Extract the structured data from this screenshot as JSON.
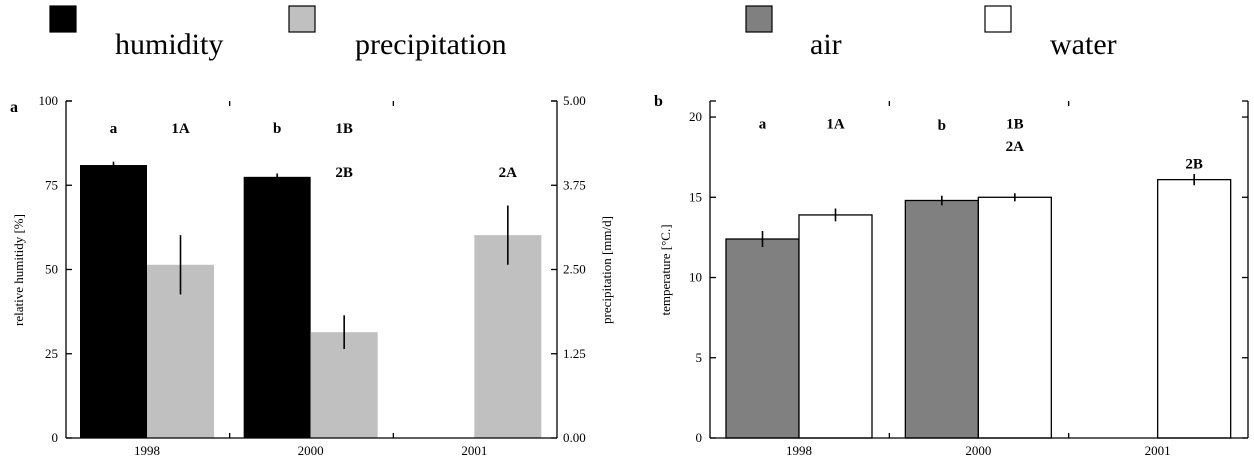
{
  "legend_left": [
    {
      "label": "humidity",
      "color": "#000000"
    },
    {
      "label": "precipitation",
      "color": "#c0c0c0"
    }
  ],
  "legend_right": [
    {
      "label": "air",
      "color": "#808080"
    },
    {
      "label": "water",
      "color": "#ffffff"
    }
  ],
  "chart_data": [
    {
      "type": "bar",
      "panel": "a",
      "categories": [
        "1998",
        "2000",
        "2001"
      ],
      "series": [
        {
          "name": "humidity",
          "axis": "left",
          "color": "#000000",
          "values": [
            81,
            77.5,
            null
          ],
          "errors": [
            1,
            1,
            null
          ]
        },
        {
          "name": "precipitation",
          "axis": "right",
          "color": "#c0c0c0",
          "values": [
            2.57,
            1.57,
            3.01
          ],
          "errors": [
            0.44,
            0.25,
            0.44
          ]
        }
      ],
      "ylabel": "relative humitidy [%]",
      "ylim": [
        0,
        100
      ],
      "yticks": [
        "0",
        "25",
        "50",
        "75",
        "100"
      ],
      "y2label": "precipitation [mm/d]",
      "y2lim": [
        0,
        5
      ],
      "y2ticks": [
        "0.00",
        "1.25",
        "2.50",
        "3.75",
        "5.00"
      ],
      "annotations": [
        {
          "text": "a",
          "category": "1998",
          "series": "humidity",
          "y": 92
        },
        {
          "text": "1A",
          "category": "1998",
          "series": "precipitation",
          "y": 92
        },
        {
          "text": "b",
          "category": "2000",
          "series": "humidity",
          "y": 92
        },
        {
          "text": "1B",
          "category": "2000",
          "series": "precipitation",
          "y": 92
        },
        {
          "text": "2B",
          "category": "2000",
          "series": "precipitation",
          "y": 79
        },
        {
          "text": "2A",
          "category": "2001",
          "series": "precipitation",
          "y": 79
        }
      ]
    },
    {
      "type": "bar",
      "panel": "b",
      "categories": [
        "1998",
        "2000",
        "2001"
      ],
      "series": [
        {
          "name": "air",
          "color": "#808080",
          "values": [
            12.4,
            14.8,
            null
          ],
          "errors": [
            0.5,
            0.3,
            null
          ]
        },
        {
          "name": "water",
          "color": "#ffffff",
          "values": [
            13.9,
            15.0,
            16.1
          ],
          "errors": [
            0.4,
            0.25,
            0.35
          ]
        }
      ],
      "ylabel": "temperature [°C.]",
      "ylim": [
        0,
        21
      ],
      "yticks": [
        "0",
        "5",
        "10",
        "15",
        "20"
      ],
      "annotations": [
        {
          "text": "a",
          "category": "1998",
          "series": "air",
          "y": 19.6
        },
        {
          "text": "1A",
          "category": "1998",
          "series": "water",
          "y": 19.6
        },
        {
          "text": "b",
          "category": "2000",
          "series": "air",
          "y": 19.5
        },
        {
          "text": "1B",
          "category": "2000",
          "series": "water",
          "y": 19.6
        },
        {
          "text": "2A",
          "category": "2000",
          "series": "water",
          "y": 18.2
        },
        {
          "text": "2B",
          "category": "2001",
          "series": "water",
          "y": 17.1
        }
      ]
    }
  ]
}
